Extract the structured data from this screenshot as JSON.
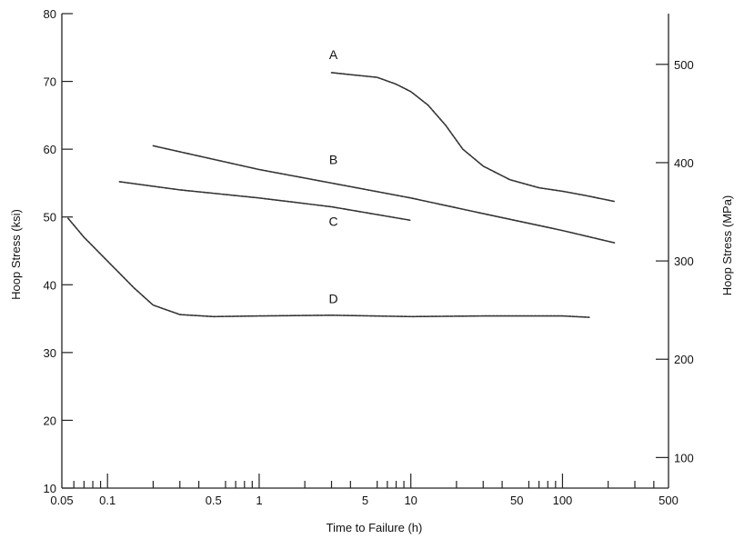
{
  "chart_data": {
    "type": "line",
    "xlabel": "Time to Failure (h)",
    "ylabel": "Hoop Stress (ksi)",
    "y2label": "Hoop Stress (MPa)",
    "x_scale": "log",
    "xlim": [
      0.05,
      500
    ],
    "ylim": [
      10,
      80
    ],
    "y2lim": [
      68.9,
      551.6
    ],
    "grid": false,
    "x_tick_labels": [
      {
        "value": 0.05,
        "label": "0.05"
      },
      {
        "value": 0.1,
        "label": "0.1"
      },
      {
        "value": 0.5,
        "label": "0.5"
      },
      {
        "value": 1,
        "label": "1"
      },
      {
        "value": 5,
        "label": "5"
      },
      {
        "value": 10,
        "label": "10"
      },
      {
        "value": 50,
        "label": "50"
      },
      {
        "value": 100,
        "label": "100"
      },
      {
        "value": 500,
        "label": "500"
      }
    ],
    "x_minor_ticks": [
      0.06,
      0.07,
      0.08,
      0.09,
      0.2,
      0.3,
      0.4,
      0.6,
      0.7,
      0.8,
      0.9,
      2,
      3,
      4,
      6,
      7,
      8,
      9,
      20,
      30,
      40,
      60,
      70,
      80,
      90,
      200,
      300,
      400
    ],
    "x_major_ticks": [
      0.1,
      1,
      10,
      100
    ],
    "y_ticks": [
      10,
      20,
      30,
      40,
      50,
      60,
      70,
      80
    ],
    "y2_ticks": [
      100,
      200,
      300,
      400,
      500
    ],
    "series": [
      {
        "label": "A",
        "label_at": {
          "x": 3.0,
          "y": 73.3
        },
        "points": [
          [
            3,
            71.3
          ],
          [
            4,
            71.0
          ],
          [
            6,
            70.6
          ],
          [
            8,
            69.6
          ],
          [
            10,
            68.5
          ],
          [
            13,
            66.5
          ],
          [
            17,
            63.5
          ],
          [
            22,
            60.0
          ],
          [
            30,
            57.5
          ],
          [
            45,
            55.5
          ],
          [
            70,
            54.3
          ],
          [
            100,
            53.8
          ],
          [
            140,
            53.2
          ],
          [
            220,
            52.3
          ]
        ]
      },
      {
        "label": "B",
        "label_at": {
          "x": 3.0,
          "y": 57.8
        },
        "points": [
          [
            0.2,
            60.5
          ],
          [
            0.5,
            58.5
          ],
          [
            1,
            57.0
          ],
          [
            3,
            55.0
          ],
          [
            10,
            52.8
          ],
          [
            30,
            50.5
          ],
          [
            100,
            48.0
          ],
          [
            220,
            46.2
          ]
        ]
      },
      {
        "label": "C",
        "label_at": {
          "x": 3.0,
          "y": 48.7
        },
        "points": [
          [
            0.12,
            55.2
          ],
          [
            0.3,
            54.0
          ],
          [
            1,
            52.8
          ],
          [
            3,
            51.5
          ],
          [
            10,
            49.5
          ]
        ]
      },
      {
        "label": "D",
        "label_at": {
          "x": 3.0,
          "y": 37.3
        },
        "points": [
          [
            0.055,
            49.8
          ],
          [
            0.07,
            47.0
          ],
          [
            0.1,
            43.5
          ],
          [
            0.15,
            39.5
          ],
          [
            0.2,
            37.0
          ],
          [
            0.3,
            35.6
          ],
          [
            0.5,
            35.3
          ],
          [
            1,
            35.4
          ],
          [
            3,
            35.5
          ],
          [
            10,
            35.3
          ],
          [
            30,
            35.4
          ],
          [
            100,
            35.4
          ],
          [
            150,
            35.2
          ]
        ]
      }
    ]
  }
}
